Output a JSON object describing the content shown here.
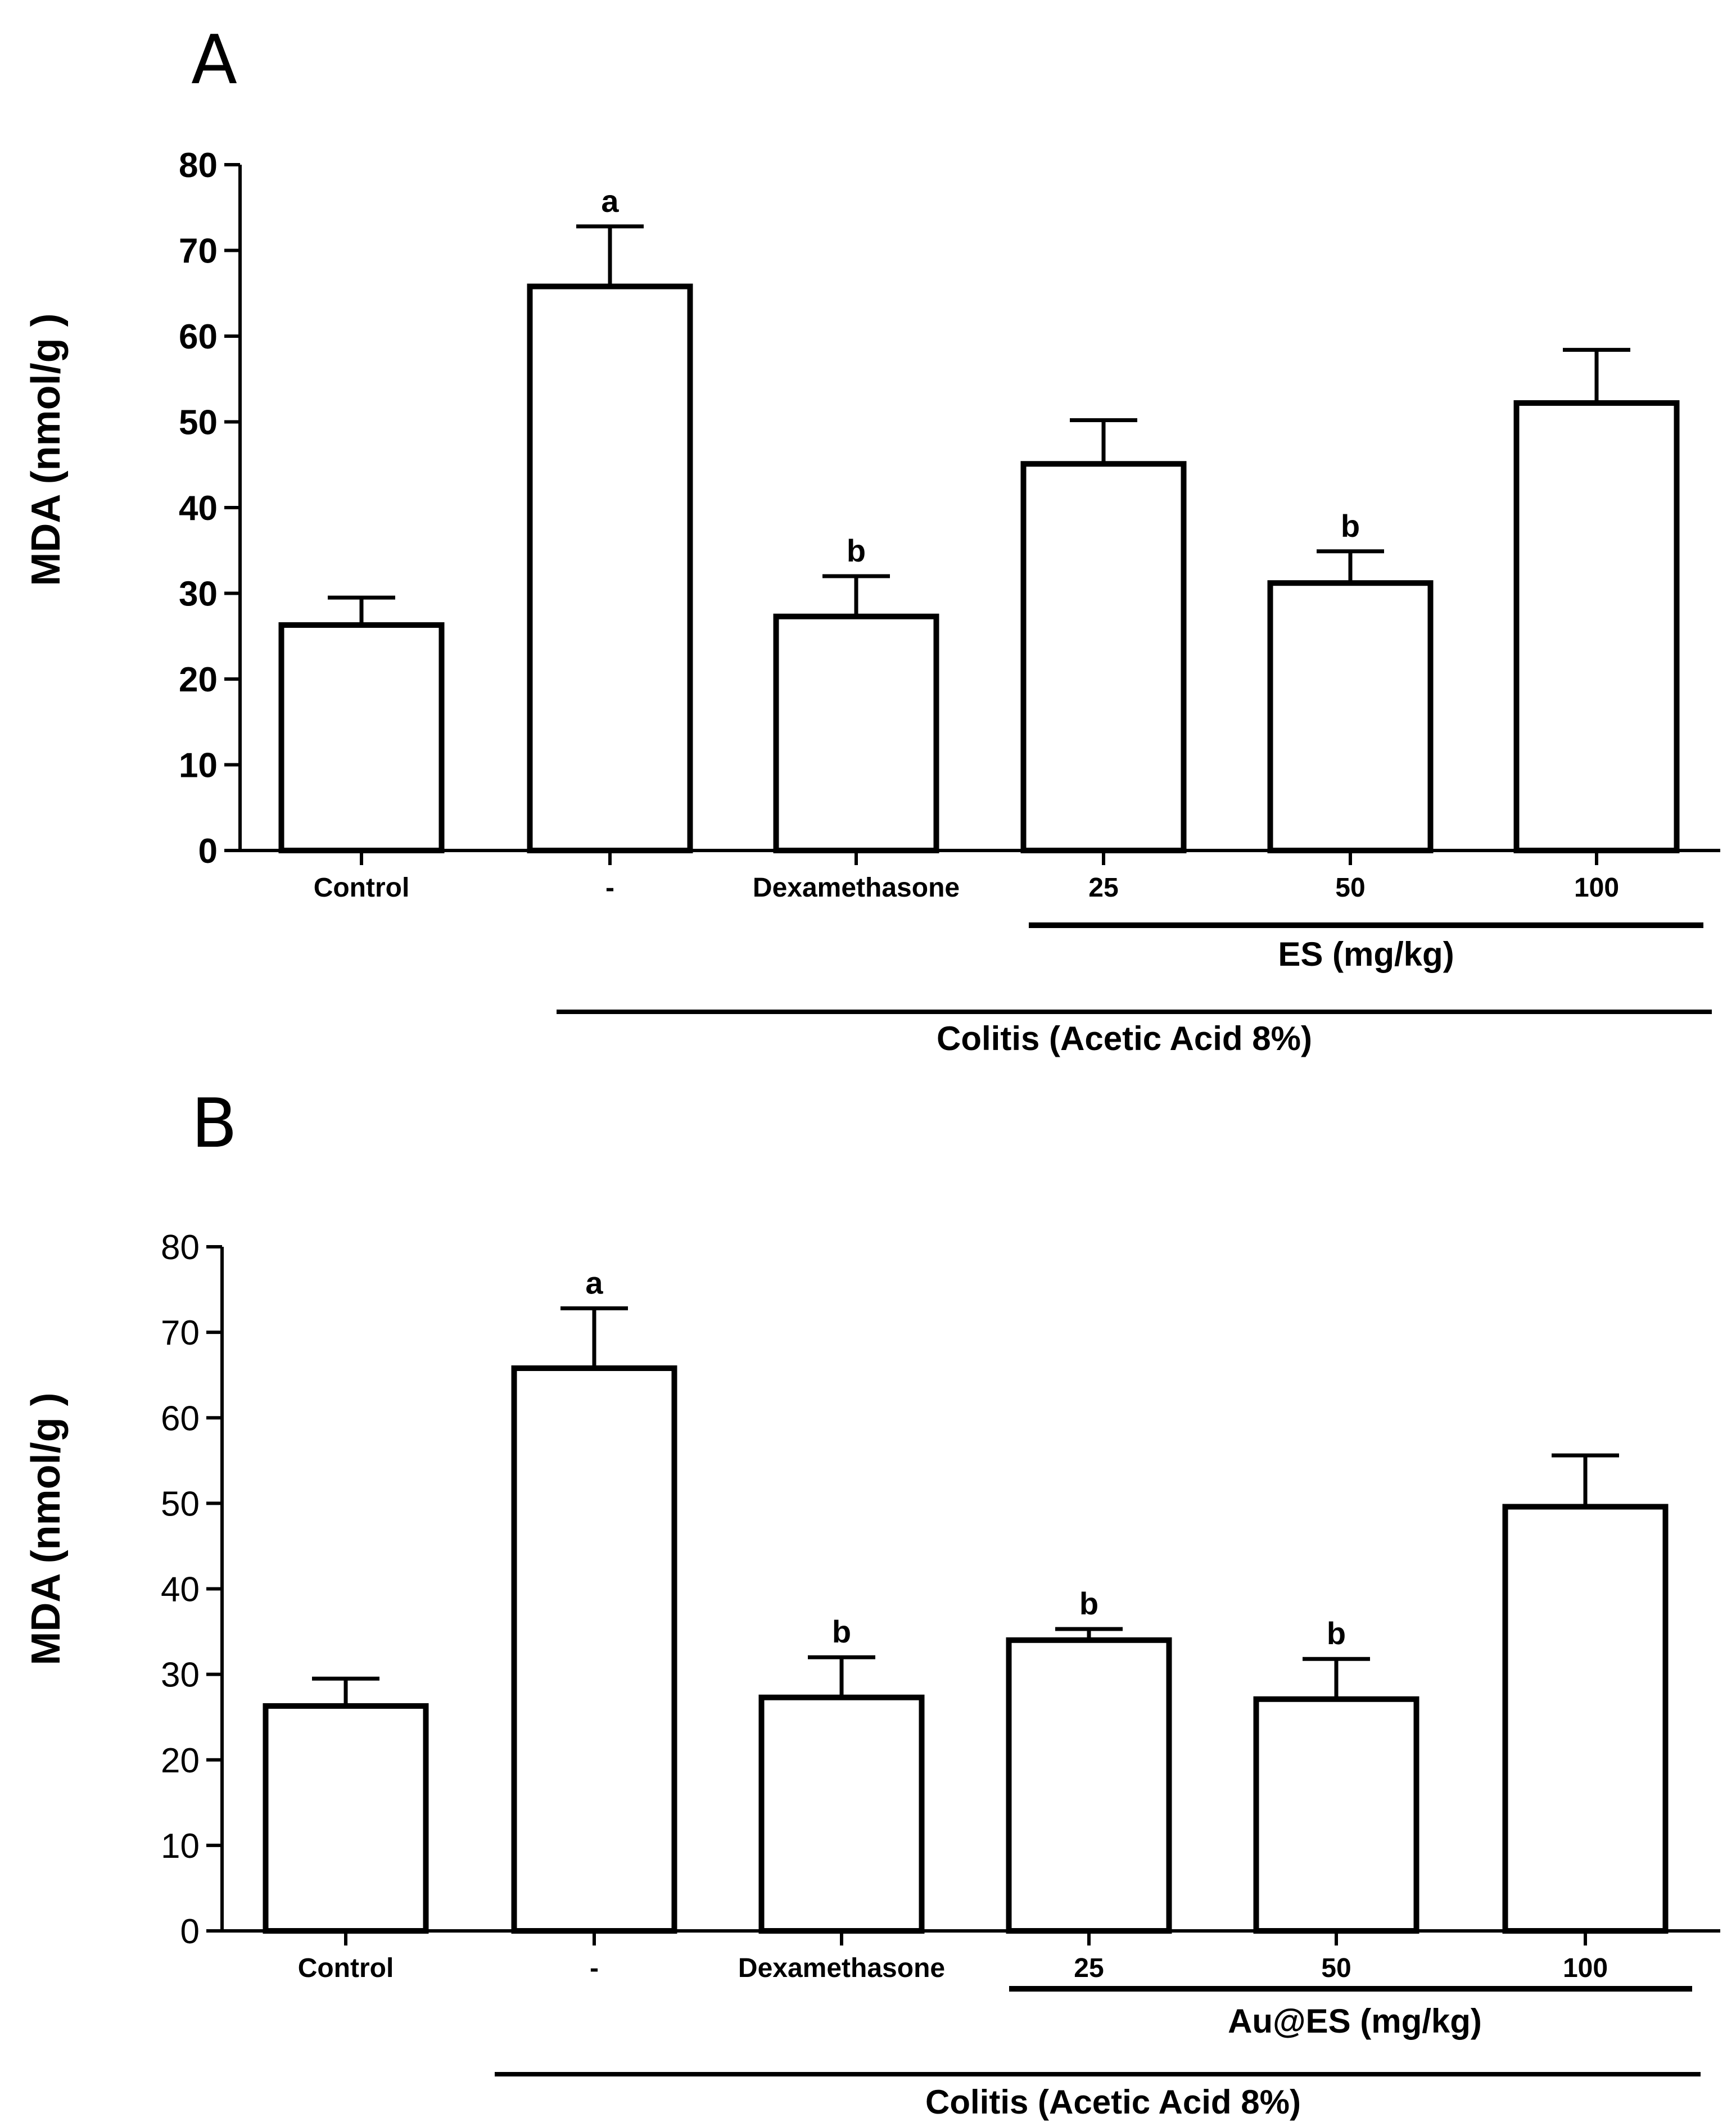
{
  "chart_data": [
    {
      "type": "bar",
      "panel": "A",
      "ylabel": "MDA (nmol/g )",
      "xlabel": "",
      "ylim": [
        0,
        80
      ],
      "yticks": [
        "0",
        "10",
        "20",
        "30",
        "40",
        "50",
        "60",
        "70",
        "80"
      ],
      "categories": [
        "Control",
        "-",
        "Dexamethasone",
        "25",
        "50",
        "100"
      ],
      "values": [
        26.3,
        65.8,
        27.3,
        45.1,
        31.2,
        52.2
      ],
      "errors": [
        3.2,
        7.0,
        4.7,
        5.1,
        3.7,
        6.2
      ],
      "significance": [
        "",
        "a",
        "b",
        "",
        "b",
        ""
      ],
      "group_labels": {
        "dose": "ES (mg/kg)",
        "colitis": "Colitis (Acetic Acid 8%)"
      }
    },
    {
      "type": "bar",
      "panel": "B",
      "ylabel": "MDA (nmol/g )",
      "xlabel": "",
      "ylim": [
        0,
        80
      ],
      "yticks": [
        "0",
        "10",
        "20",
        "30",
        "40",
        "50",
        "60",
        "70",
        "80"
      ],
      "categories": [
        "Control",
        "-",
        "Dexamethasone",
        "25",
        "50",
        "100"
      ],
      "values": [
        26.3,
        65.8,
        27.3,
        34.0,
        27.1,
        49.6
      ],
      "errors": [
        3.2,
        7.0,
        4.7,
        1.3,
        4.7,
        6.0
      ],
      "significance": [
        "",
        "a",
        "b",
        "b",
        "b",
        ""
      ],
      "group_labels": {
        "dose": "Au@ES (mg/kg)",
        "colitis": "Colitis (Acetic Acid 8%)"
      }
    }
  ]
}
